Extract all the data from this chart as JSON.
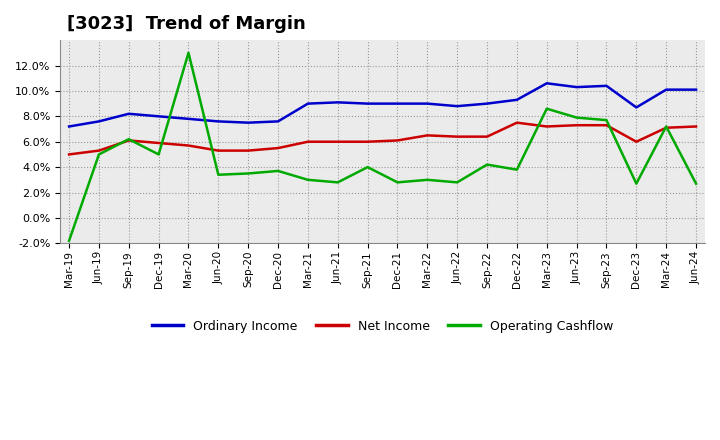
{
  "title": "[3023]  Trend of Margin",
  "title_fontsize": 13,
  "title_fontweight": "bold",
  "labels": [
    "Mar-19",
    "Jun-19",
    "Sep-19",
    "Dec-19",
    "Mar-20",
    "Jun-20",
    "Sep-20",
    "Dec-20",
    "Mar-21",
    "Jun-21",
    "Sep-21",
    "Dec-21",
    "Mar-22",
    "Jun-22",
    "Sep-22",
    "Dec-22",
    "Mar-23",
    "Jun-23",
    "Sep-23",
    "Dec-23",
    "Mar-24",
    "Jun-24"
  ],
  "ordinary_income": [
    7.2,
    7.6,
    8.2,
    8.0,
    7.8,
    7.6,
    7.5,
    7.6,
    9.0,
    9.1,
    9.0,
    9.0,
    9.0,
    8.8,
    9.0,
    9.3,
    10.6,
    10.3,
    10.4,
    8.7,
    10.1,
    10.1
  ],
  "net_income": [
    5.0,
    5.3,
    6.1,
    5.9,
    5.7,
    5.3,
    5.3,
    5.5,
    6.0,
    6.0,
    6.0,
    6.1,
    6.5,
    6.4,
    6.4,
    7.5,
    7.2,
    7.3,
    7.3,
    6.0,
    7.1,
    7.2
  ],
  "operating_cashflow": [
    -1.8,
    5.0,
    6.2,
    5.0,
    13.0,
    3.4,
    3.5,
    3.7,
    3.0,
    2.8,
    4.0,
    2.8,
    3.0,
    2.8,
    4.2,
    3.8,
    8.6,
    7.9,
    7.7,
    2.7,
    7.2,
    2.7
  ],
  "ordinary_income_color": "#0000cc",
  "net_income_color": "#cc0000",
  "operating_cashflow_color": "#00aa00",
  "background_color": "#ffffff",
  "plot_background_color": "#ebebeb",
  "grid_color": "#999999",
  "ylim": [
    -2.0,
    14.0
  ],
  "yticks": [
    -2.0,
    0.0,
    2.0,
    4.0,
    6.0,
    8.0,
    10.0,
    12.0
  ],
  "legend_labels": [
    "Ordinary Income",
    "Net Income",
    "Operating Cashflow"
  ],
  "linewidth": 1.8
}
